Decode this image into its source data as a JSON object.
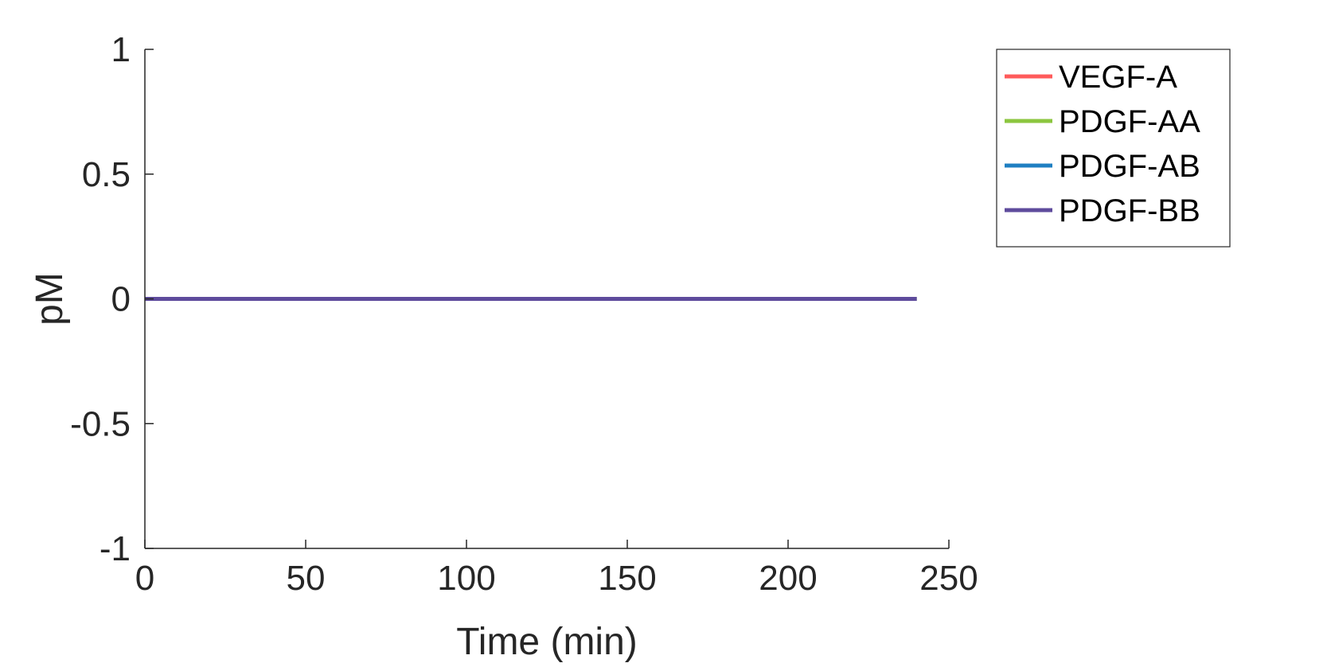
{
  "chart_data": {
    "type": "line",
    "xlabel": "Time (min)",
    "ylabel": "pM",
    "xlim": [
      0,
      250
    ],
    "ylim": [
      -1,
      1
    ],
    "xticks": [
      0,
      50,
      100,
      150,
      200,
      250
    ],
    "yticks": [
      -1,
      -0.5,
      0,
      0.5,
      1
    ],
    "xtick_labels": [
      "0",
      "50",
      "100",
      "150",
      "200",
      "250"
    ],
    "ytick_labels": [
      "-1",
      "-0.5",
      "0",
      "0.5",
      "1"
    ],
    "grid": false,
    "legend_position": "top-right",
    "series": [
      {
        "name": "VEGF-A",
        "color": "#ff5b5b",
        "x": [
          0,
          240
        ],
        "y": [
          0,
          0
        ]
      },
      {
        "name": "PDGF-AA",
        "color": "#8cc63f",
        "x": [
          0,
          240
        ],
        "y": [
          0,
          0
        ]
      },
      {
        "name": "PDGF-AB",
        "color": "#1f7fc2",
        "x": [
          0,
          240
        ],
        "y": [
          0,
          0
        ]
      },
      {
        "name": "PDGF-BB",
        "color": "#5e4b9c",
        "x": [
          0,
          240
        ],
        "y": [
          0,
          0
        ]
      }
    ]
  }
}
